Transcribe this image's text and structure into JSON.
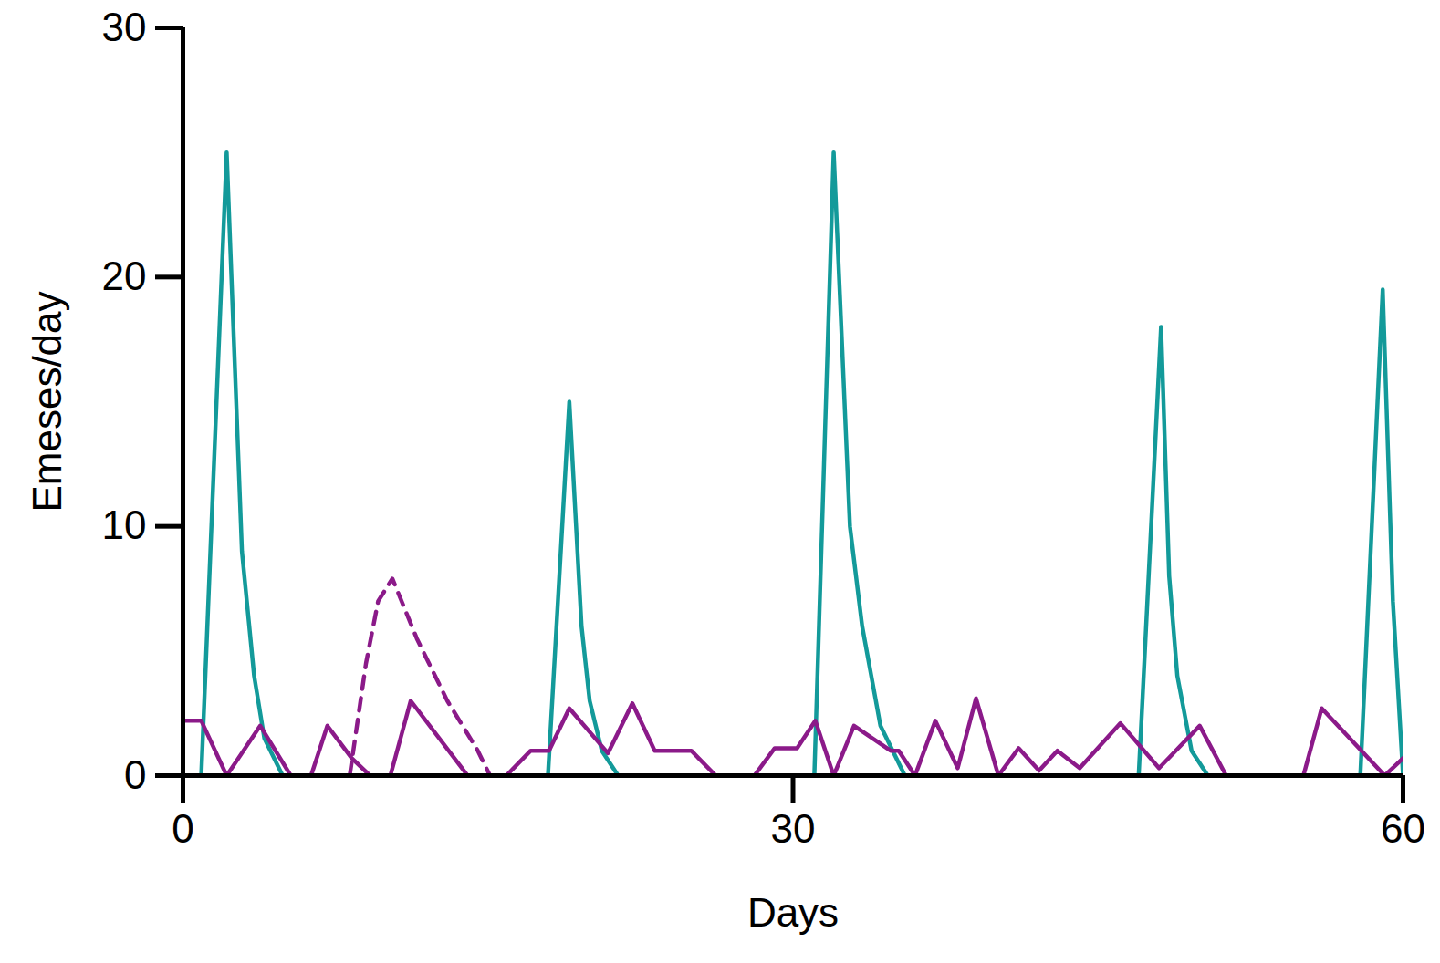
{
  "chart_data": {
    "type": "line",
    "xlabel": "Days",
    "ylabel": "Emeses/day",
    "xlim": [
      0,
      60
    ],
    "xticks": [
      0,
      30,
      60
    ],
    "ylim": [
      0,
      30
    ],
    "yticks": [
      0,
      10,
      20,
      30
    ],
    "grid": false,
    "series": [
      {
        "color": "#139a9a",
        "line_style": "solid",
        "x": [
          0.9,
          2.15,
          2.9,
          3.5,
          4.0,
          4.9,
          null,
          17.95,
          19.0,
          19.6,
          20.0,
          20.6,
          21.4,
          null,
          31.05,
          32.0,
          32.8,
          33.4,
          34.3,
          35.5,
          null,
          47.0,
          48.1,
          48.5,
          48.9,
          49.6,
          50.4,
          null,
          57.9,
          59.0,
          59.5,
          60.0
        ],
        "values": [
          0,
          25,
          9,
          4,
          1.5,
          0,
          null,
          0,
          15,
          6,
          3,
          1,
          0,
          null,
          0,
          25,
          10,
          6,
          2,
          0,
          null,
          0,
          18,
          8,
          4,
          1,
          0,
          null,
          0,
          19.5,
          7,
          0
        ]
      },
      {
        "color": "#8b1a89",
        "line_style": "solid",
        "x": [
          0,
          0.9,
          2.15,
          3.8,
          5.3,
          null,
          6.3,
          7.1,
          8.3,
          9.2,
          null,
          10.2,
          11.2,
          14.0,
          null,
          15.9,
          17.1,
          18.0,
          19.0,
          20.9,
          22.1,
          23.2,
          25.0,
          26.2,
          null,
          28.1,
          29.1,
          30.2,
          31.1,
          32.0,
          33.0,
          34.8,
          35.2,
          36.0,
          37.0,
          38.1,
          39.0,
          40.1,
          41.1,
          42.1,
          43.0,
          44.1,
          46.1,
          48.0,
          50.0,
          51.3,
          null,
          55.1,
          56.0,
          59.1,
          60.0
        ],
        "values": [
          2.2,
          2.2,
          0,
          2,
          0,
          null,
          0,
          2,
          0.7,
          0,
          null,
          0,
          3,
          0,
          null,
          0,
          1,
          1,
          2.7,
          0.9,
          2.9,
          1,
          1,
          0,
          null,
          0,
          1.1,
          1.1,
          2.2,
          0,
          2,
          1,
          1,
          0,
          2.2,
          0.3,
          3.1,
          0,
          1.1,
          0.2,
          1,
          0.3,
          2.1,
          0.3,
          2,
          0,
          null,
          0,
          2.7,
          0,
          0.7
        ]
      },
      {
        "color": "#8b1a89",
        "line_style": "dashed",
        "x": [
          8.2,
          9.0,
          9.6,
          10.3,
          11.5,
          13.0,
          14.5,
          15.1
        ],
        "values": [
          0,
          4.5,
          7,
          7.9,
          5.5,
          3,
          1,
          0
        ]
      }
    ]
  }
}
